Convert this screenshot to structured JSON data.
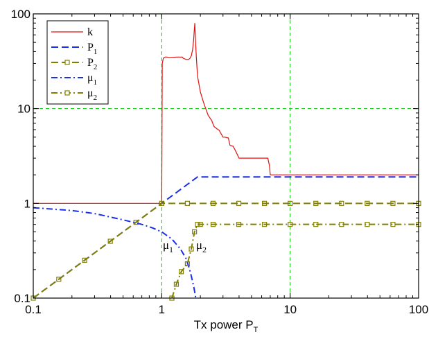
{
  "chart_data": {
    "type": "line",
    "title": "",
    "xlabel": "Tx power P",
    "xlabel_sub": "T",
    "ylabel": "",
    "xscale": "log",
    "yscale": "log",
    "xlim": [
      0.1,
      100
    ],
    "ylim": [
      0.1,
      100
    ],
    "x_ticks": [
      0.1,
      1,
      10,
      100
    ],
    "x_tick_labels": [
      "0.1",
      "1",
      "10",
      "100"
    ],
    "y_ticks": [
      0.1,
      1,
      10,
      100
    ],
    "y_tick_labels": [
      "0.1",
      "1",
      "10",
      "100"
    ],
    "reference_lines": {
      "x": [
        1,
        10
      ],
      "y": [
        10
      ],
      "color": "#00cc00",
      "style": "dashed"
    },
    "legend_position": "top-left",
    "series": [
      {
        "name": "k",
        "sub": "",
        "color": "#e01010",
        "style": "solid",
        "marker": "none",
        "x": [
          0.1,
          0.5,
          0.99,
          1.0,
          1.01,
          1.03,
          1.06,
          1.1,
          1.15,
          1.3,
          1.45,
          1.47,
          1.55,
          1.62,
          1.66,
          1.7,
          1.74,
          1.77,
          1.79,
          1.81,
          1.83,
          1.86,
          1.9,
          2.0,
          2.1,
          2.2,
          2.3,
          2.45,
          2.55,
          2.7,
          2.8,
          3.0,
          3.1,
          3.3,
          3.4,
          3.6,
          3.75,
          4.0,
          4.3,
          5.0,
          6.0,
          6.7,
          6.9,
          7.0,
          10,
          30,
          100
        ],
        "y": [
          1,
          1,
          1,
          1,
          30,
          34,
          35,
          35,
          34.5,
          35,
          35,
          34,
          33,
          33,
          34,
          36,
          42,
          52,
          65,
          80,
          55,
          35,
          22,
          15,
          12,
          10,
          8.5,
          7.5,
          6.5,
          6.1,
          5.9,
          5,
          5,
          4.9,
          4.1,
          4,
          3.6,
          3,
          3,
          3,
          3,
          3,
          2.5,
          2,
          2,
          2,
          2
        ]
      },
      {
        "name": "P",
        "sub": "1",
        "color": "#1a2ee8",
        "style": "dashed",
        "marker": "none",
        "x": [
          0.1,
          1.0,
          1.9,
          100
        ],
        "y": [
          0.1,
          1.0,
          1.9,
          1.9
        ]
      },
      {
        "name": "P",
        "sub": "2",
        "color": "#808000",
        "style": "dashed",
        "marker": "square",
        "x": [
          0.1,
          0.158,
          0.251,
          0.398,
          0.631,
          1.0,
          1.585,
          2.512,
          3.981,
          6.31,
          10,
          15.85,
          25.12,
          39.81,
          63.1,
          100
        ],
        "y": [
          0.1,
          0.158,
          0.251,
          0.398,
          0.631,
          1.0,
          1,
          1,
          1,
          1,
          1,
          1,
          1,
          1,
          1,
          1
        ]
      },
      {
        "name": "μ",
        "sub": "1",
        "color": "#1a2ee8",
        "style": "dashdot",
        "marker": "none",
        "x": [
          0.1,
          0.2,
          0.3,
          0.5,
          0.7,
          0.85,
          1.0,
          1.2,
          1.4,
          1.55,
          1.65,
          1.72,
          1.78,
          1.82,
          1.84
        ],
        "y": [
          0.9,
          0.84,
          0.78,
          0.67,
          0.6,
          0.55,
          0.5,
          0.42,
          0.33,
          0.26,
          0.2,
          0.16,
          0.13,
          0.11,
          0.1
        ]
      },
      {
        "name": "μ",
        "sub": "2",
        "color": "#808000",
        "style": "dashdot",
        "marker": "square",
        "x": [
          1.2,
          1.3,
          1.42,
          1.585,
          1.7,
          1.8,
          1.9,
          2.0,
          2.512,
          3.981,
          6.31,
          10,
          15.85,
          25.12,
          39.81,
          63.1,
          100
        ],
        "y": [
          0.1,
          0.14,
          0.19,
          0.23,
          0.33,
          0.5,
          0.6,
          0.6,
          0.6,
          0.6,
          0.6,
          0.6,
          0.6,
          0.6,
          0.6,
          0.6,
          0.6
        ]
      }
    ],
    "annotations": [
      {
        "text": "μ",
        "sub": "1",
        "x": 1.02,
        "y": 0.33
      },
      {
        "text": "μ",
        "sub": "2",
        "x": 1.85,
        "y": 0.33
      }
    ]
  }
}
